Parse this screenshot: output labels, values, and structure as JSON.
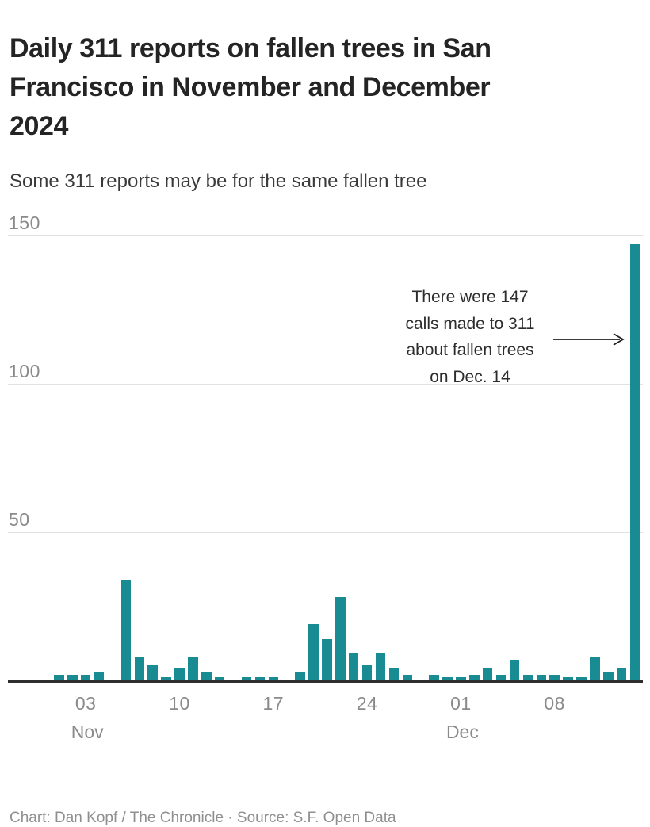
{
  "header": {
    "title": "Daily 311 reports on fallen trees in San Francisco in November and December 2024",
    "title_lines": [
      "Daily 311 reports on fallen trees in San",
      "Francisco in November and December",
      "2024"
    ],
    "subtitle": "Some 311 reports may be for the same fallen tree"
  },
  "footer": {
    "credit": "Chart: Dan Kopf / The Chronicle · Source: S.F. Open Data"
  },
  "chart_data": {
    "type": "bar",
    "title": "Daily 311 reports on fallen trees in San Francisco in November and December 2024",
    "subtitle": "Some 311 reports may be for the same fallen tree",
    "xlabel": "",
    "ylabel": "",
    "ylim": [
      0,
      150
    ],
    "yticks": [
      50,
      100,
      150
    ],
    "grid": "horizontal-only",
    "legend": "none",
    "bar_color": "#198c93",
    "axis_color": "#2e2e2e",
    "x": [
      "Nov 1",
      "Nov 2",
      "Nov 3",
      "Nov 4",
      "Nov 5",
      "Nov 6",
      "Nov 7",
      "Nov 8",
      "Nov 9",
      "Nov 10",
      "Nov 11",
      "Nov 12",
      "Nov 13",
      "Nov 14",
      "Nov 15",
      "Nov 16",
      "Nov 17",
      "Nov 18",
      "Nov 19",
      "Nov 20",
      "Nov 21",
      "Nov 22",
      "Nov 23",
      "Nov 24",
      "Nov 25",
      "Nov 26",
      "Nov 27",
      "Nov 28",
      "Nov 29",
      "Nov 30",
      "Dec 1",
      "Dec 2",
      "Dec 3",
      "Dec 4",
      "Dec 5",
      "Dec 6",
      "Dec 7",
      "Dec 8",
      "Dec 9",
      "Dec 10",
      "Dec 11",
      "Dec 12",
      "Dec 13",
      "Dec 14"
    ],
    "values": [
      2,
      2,
      2,
      3,
      0,
      34,
      8,
      5,
      1,
      4,
      8,
      3,
      1,
      0,
      1,
      1,
      1,
      0,
      3,
      19,
      14,
      28,
      9,
      5,
      9,
      4,
      2,
      0,
      2,
      1,
      1,
      2,
      4,
      2,
      7,
      2,
      2,
      2,
      1,
      1,
      8,
      3,
      4,
      147
    ],
    "xticks": [
      {
        "index": 2,
        "label": "03",
        "month": "Nov"
      },
      {
        "index": 9,
        "label": "10"
      },
      {
        "index": 16,
        "label": "17"
      },
      {
        "index": 23,
        "label": "24"
      },
      {
        "index": 30,
        "label": "01",
        "month": "Dec"
      },
      {
        "index": 37,
        "label": "08"
      }
    ],
    "annotation": {
      "text": "There were 147 calls made to 311 about fallen trees on Dec. 14",
      "lines": [
        "There were 147",
        "calls made to 311",
        "about fallen trees",
        "on Dec. 14"
      ],
      "target_x": "Dec 14",
      "target_value": 147
    }
  }
}
